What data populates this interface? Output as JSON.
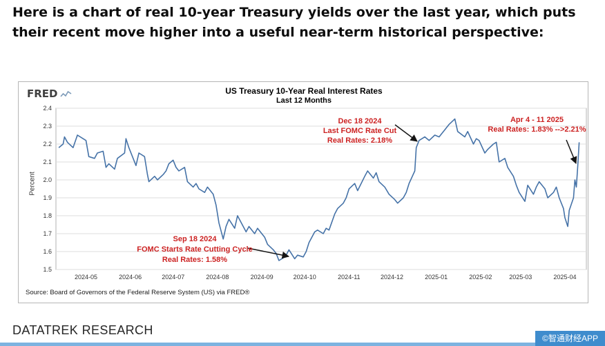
{
  "page": {
    "headline": "Here is a chart of real 10-year Treasury yields over the last year, which puts their recent move higher into a useful near-term historical perspective:",
    "footer_brand": "DATATREK RESEARCH",
    "watermark": "©智通财经APP"
  },
  "chart": {
    "logo": "FRED",
    "source": "Source: Board of Governors of the Federal Reserve System (US) via FRED®",
    "colors": {
      "line": "#4572a7",
      "annotation": "#cc2222",
      "grid": "#dedede",
      "watermark_bg": "#3f8ccd"
    }
  },
  "chart_data": {
    "type": "line",
    "title": "US Treasury 10-Year Real Interest Rates",
    "subtitle": "Last 12 Months",
    "xlabel": "",
    "ylabel": "Percent",
    "ylim": [
      1.5,
      2.4
    ],
    "y_ticks": [
      1.5,
      1.6,
      1.7,
      1.8,
      1.9,
      2.0,
      2.1,
      2.2,
      2.3,
      2.4
    ],
    "grid": "horizontal",
    "legend": false,
    "x_domain": [
      "2024-04-10",
      "2025-04-16"
    ],
    "x_ticks": [
      {
        "label": "2024-05",
        "date": "2024-05-01"
      },
      {
        "label": "2024-06",
        "date": "2024-06-01"
      },
      {
        "label": "2024-07",
        "date": "2024-07-01"
      },
      {
        "label": "2024-08",
        "date": "2024-08-01"
      },
      {
        "label": "2024-09",
        "date": "2024-09-01"
      },
      {
        "label": "2024-10",
        "date": "2024-10-01"
      },
      {
        "label": "2024-11",
        "date": "2024-11-01"
      },
      {
        "label": "2024-12",
        "date": "2024-12-01"
      },
      {
        "label": "2025-01",
        "date": "2025-01-01"
      },
      {
        "label": "2025-02",
        "date": "2025-02-01"
      },
      {
        "label": "2025-03",
        "date": "2025-03-01"
      },
      {
        "label": "2025-04",
        "date": "2025-04-01"
      }
    ],
    "annotations": [
      {
        "lines": [
          "Sep 18 2024",
          "FOMC Starts Rate Cutting Cycle",
          "Real Rates: 1.58%"
        ],
        "target_date": "2024-09-18",
        "target_value": 1.58
      },
      {
        "lines": [
          "Dec 18 2024",
          "Last FOMC Rate Cut",
          "Real Rates: 2.18%"
        ],
        "target_date": "2024-12-18",
        "target_value": 2.18
      },
      {
        "lines": [
          "Apr 4 - 11 2025",
          "Real Rates: 1.83% -->2.21%"
        ],
        "target_date": "2025-04-11",
        "target_value": 2.21
      }
    ],
    "series": [
      {
        "name": "US Treasury 10-Year Real Interest Rate",
        "color": "#4572a7",
        "points": [
          [
            "2024-04-12",
            2.18
          ],
          [
            "2024-04-15",
            2.2
          ],
          [
            "2024-04-16",
            2.24
          ],
          [
            "2024-04-18",
            2.21
          ],
          [
            "2024-04-22",
            2.18
          ],
          [
            "2024-04-25",
            2.25
          ],
          [
            "2024-04-29",
            2.23
          ],
          [
            "2024-05-01",
            2.22
          ],
          [
            "2024-05-03",
            2.13
          ],
          [
            "2024-05-07",
            2.12
          ],
          [
            "2024-05-09",
            2.15
          ],
          [
            "2024-05-13",
            2.16
          ],
          [
            "2024-05-15",
            2.07
          ],
          [
            "2024-05-17",
            2.09
          ],
          [
            "2024-05-21",
            2.06
          ],
          [
            "2024-05-23",
            2.12
          ],
          [
            "2024-05-28",
            2.15
          ],
          [
            "2024-05-29",
            2.23
          ],
          [
            "2024-05-31",
            2.18
          ],
          [
            "2024-06-03",
            2.12
          ],
          [
            "2024-06-05",
            2.08
          ],
          [
            "2024-06-07",
            2.15
          ],
          [
            "2024-06-11",
            2.13
          ],
          [
            "2024-06-13",
            2.03
          ],
          [
            "2024-06-14",
            1.99
          ],
          [
            "2024-06-18",
            2.02
          ],
          [
            "2024-06-20",
            2.0
          ],
          [
            "2024-06-24",
            2.03
          ],
          [
            "2024-06-26",
            2.05
          ],
          [
            "2024-06-28",
            2.09
          ],
          [
            "2024-07-01",
            2.11
          ],
          [
            "2024-07-03",
            2.07
          ],
          [
            "2024-07-05",
            2.05
          ],
          [
            "2024-07-09",
            2.07
          ],
          [
            "2024-07-11",
            1.99
          ],
          [
            "2024-07-15",
            1.96
          ],
          [
            "2024-07-17",
            1.98
          ],
          [
            "2024-07-19",
            1.95
          ],
          [
            "2024-07-23",
            1.93
          ],
          [
            "2024-07-25",
            1.96
          ],
          [
            "2024-07-29",
            1.92
          ],
          [
            "2024-07-31",
            1.86
          ],
          [
            "2024-08-02",
            1.76
          ],
          [
            "2024-08-05",
            1.67
          ],
          [
            "2024-08-07",
            1.74
          ],
          [
            "2024-08-09",
            1.78
          ],
          [
            "2024-08-13",
            1.73
          ],
          [
            "2024-08-15",
            1.8
          ],
          [
            "2024-08-19",
            1.74
          ],
          [
            "2024-08-21",
            1.71
          ],
          [
            "2024-08-23",
            1.74
          ],
          [
            "2024-08-27",
            1.7
          ],
          [
            "2024-08-29",
            1.73
          ],
          [
            "2024-09-03",
            1.68
          ],
          [
            "2024-09-05",
            1.64
          ],
          [
            "2024-09-09",
            1.61
          ],
          [
            "2024-09-11",
            1.59
          ],
          [
            "2024-09-13",
            1.55
          ],
          [
            "2024-09-17",
            1.57
          ],
          [
            "2024-09-18",
            1.58
          ],
          [
            "2024-09-20",
            1.61
          ],
          [
            "2024-09-24",
            1.56
          ],
          [
            "2024-09-26",
            1.58
          ],
          [
            "2024-09-30",
            1.57
          ],
          [
            "2024-10-02",
            1.6
          ],
          [
            "2024-10-04",
            1.65
          ],
          [
            "2024-10-08",
            1.71
          ],
          [
            "2024-10-10",
            1.72
          ],
          [
            "2024-10-14",
            1.7
          ],
          [
            "2024-10-16",
            1.73
          ],
          [
            "2024-10-18",
            1.72
          ],
          [
            "2024-10-22",
            1.81
          ],
          [
            "2024-10-24",
            1.84
          ],
          [
            "2024-10-28",
            1.87
          ],
          [
            "2024-10-30",
            1.9
          ],
          [
            "2024-11-01",
            1.95
          ],
          [
            "2024-11-05",
            1.98
          ],
          [
            "2024-11-07",
            1.94
          ],
          [
            "2024-11-12",
            2.02
          ],
          [
            "2024-11-14",
            2.05
          ],
          [
            "2024-11-18",
            2.01
          ],
          [
            "2024-11-20",
            2.04
          ],
          [
            "2024-11-22",
            1.99
          ],
          [
            "2024-11-26",
            1.96
          ],
          [
            "2024-11-29",
            1.92
          ],
          [
            "2024-12-03",
            1.89
          ],
          [
            "2024-12-05",
            1.87
          ],
          [
            "2024-12-09",
            1.9
          ],
          [
            "2024-12-11",
            1.93
          ],
          [
            "2024-12-13",
            1.98
          ],
          [
            "2024-12-17",
            2.05
          ],
          [
            "2024-12-18",
            2.18
          ],
          [
            "2024-12-20",
            2.22
          ],
          [
            "2024-12-24",
            2.24
          ],
          [
            "2024-12-27",
            2.22
          ],
          [
            "2024-12-31",
            2.25
          ],
          [
            "2025-01-03",
            2.24
          ],
          [
            "2025-01-07",
            2.28
          ],
          [
            "2025-01-10",
            2.31
          ],
          [
            "2025-01-14",
            2.34
          ],
          [
            "2025-01-16",
            2.27
          ],
          [
            "2025-01-21",
            2.24
          ],
          [
            "2025-01-23",
            2.27
          ],
          [
            "2025-01-27",
            2.2
          ],
          [
            "2025-01-29",
            2.23
          ],
          [
            "2025-01-31",
            2.22
          ],
          [
            "2025-02-04",
            2.15
          ],
          [
            "2025-02-06",
            2.17
          ],
          [
            "2025-02-10",
            2.2
          ],
          [
            "2025-02-12",
            2.21
          ],
          [
            "2025-02-14",
            2.1
          ],
          [
            "2025-02-18",
            2.12
          ],
          [
            "2025-02-20",
            2.07
          ],
          [
            "2025-02-24",
            2.02
          ],
          [
            "2025-02-26",
            1.97
          ],
          [
            "2025-02-28",
            1.93
          ],
          [
            "2025-03-04",
            1.88
          ],
          [
            "2025-03-06",
            1.97
          ],
          [
            "2025-03-10",
            1.92
          ],
          [
            "2025-03-12",
            1.96
          ],
          [
            "2025-03-14",
            1.99
          ],
          [
            "2025-03-18",
            1.95
          ],
          [
            "2025-03-20",
            1.9
          ],
          [
            "2025-03-24",
            1.93
          ],
          [
            "2025-03-26",
            1.96
          ],
          [
            "2025-03-28",
            1.9
          ],
          [
            "2025-03-31",
            1.84
          ],
          [
            "2025-04-01",
            1.79
          ],
          [
            "2025-04-03",
            1.74
          ],
          [
            "2025-04-04",
            1.83
          ],
          [
            "2025-04-07",
            1.9
          ],
          [
            "2025-04-08",
            2.0
          ],
          [
            "2025-04-09",
            1.96
          ],
          [
            "2025-04-10",
            2.08
          ],
          [
            "2025-04-11",
            2.21
          ]
        ]
      }
    ]
  }
}
